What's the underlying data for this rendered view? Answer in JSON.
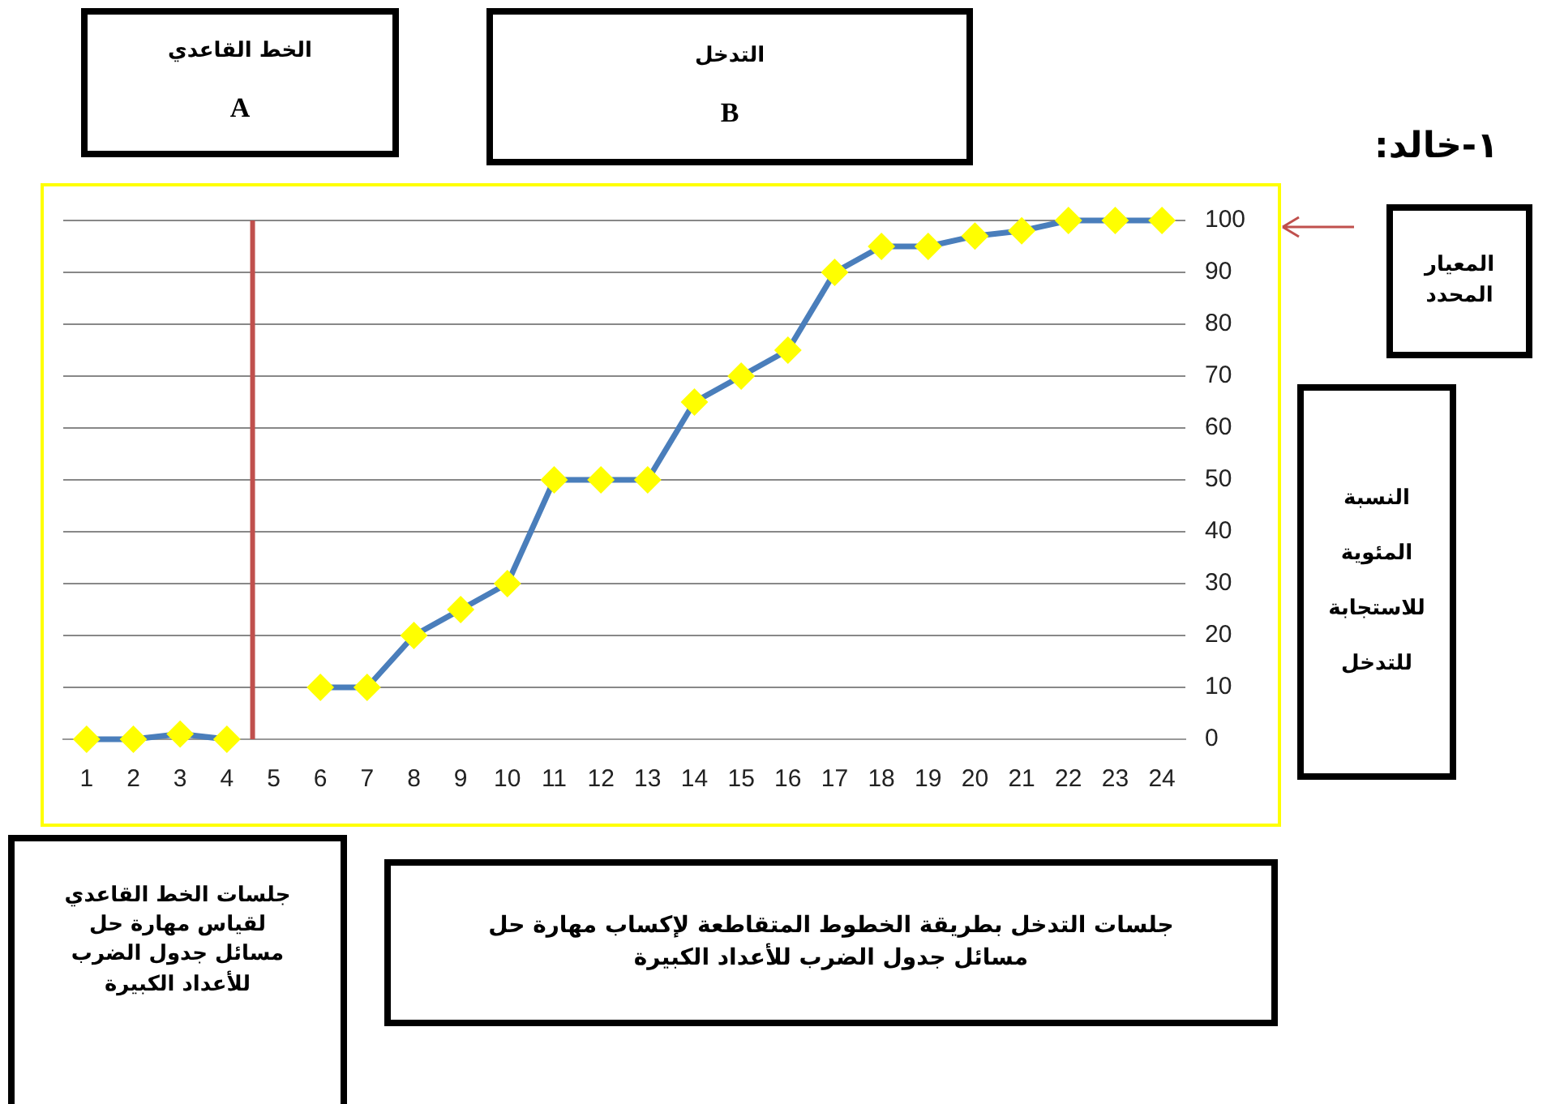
{
  "chart_data": {
    "type": "line",
    "x": [
      1,
      2,
      3,
      4,
      5,
      6,
      7,
      8,
      9,
      10,
      11,
      12,
      13,
      14,
      15,
      16,
      17,
      18,
      19,
      20,
      21,
      22,
      23,
      24
    ],
    "series": [
      {
        "color": "#4a7ebb",
        "colors": [
          "#ffff00",
          "#ffff00",
          "#ffff00",
          "#ffff00",
          "#ffff00",
          "#ffff00",
          "#ffff00",
          "#ffff00",
          "#ffff00",
          "#ffff00",
          "#ffff00",
          "#ffff00",
          "#ffff00",
          "#ffff00",
          "#ffff00",
          "#ffff00",
          "#ffff00",
          "#ffff00",
          "#ffff00",
          "#ffff00",
          "#ffff00",
          "#ffff00",
          "#ffff00",
          "#ffff00"
        ],
        "values": [
          0,
          0,
          1,
          0,
          null,
          10,
          10,
          20,
          25,
          30,
          50,
          50,
          50,
          65,
          70,
          75,
          90,
          95,
          95,
          97,
          98,
          100,
          100,
          100
        ]
      }
    ],
    "xlim": [
      0.5,
      24.5
    ],
    "xticks": [
      1,
      2,
      3,
      4,
      5,
      6,
      7,
      8,
      9,
      10,
      11,
      12,
      13,
      14,
      15,
      16,
      17,
      18,
      19,
      20,
      21,
      22,
      23,
      24
    ],
    "ylim": [
      0,
      100
    ],
    "yticks": [
      0,
      10,
      20,
      30,
      40,
      50,
      60,
      70,
      80,
      90,
      100
    ],
    "grid": "y",
    "legend": false,
    "marker": "diamond",
    "line_style": "solid",
    "ylabel": "النسبة المئوية للاستجابة للتدخل",
    "ref_lines": [
      {
        "axis": "x",
        "value": 4.55,
        "color": "#c0504d"
      }
    ],
    "annotations": [
      "الخط القاعدي",
      "A",
      "التدخل",
      "B",
      "١-خالد:",
      "المعيار المحدد",
      "جلسات الخط القاعدي لقياس مهارة حل مسائل جدول الضرب للأعداد الكبيرة",
      "جلسات التدخل بطريقة الخطوط المتقاطعة لإكساب مهارة حل مسائل جدول الضرب للأعداد الكبيرة"
    ]
  }
}
